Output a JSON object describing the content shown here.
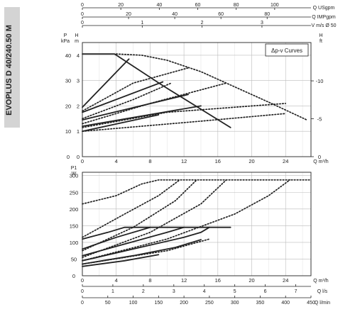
{
  "model_label": "EVOPLUS D 40/240.50 M",
  "chart_data": [
    {
      "type": "line",
      "name": "head",
      "legend": "Δp-v Curves",
      "legend_position": "top-right",
      "ylabel_left": "P kPa",
      "ylabel_left2": "H m",
      "ylabel_right": "H ft",
      "grid": true,
      "x_axis": {
        "label": "Q m³/h",
        "ticks": [
          0,
          4,
          8,
          12,
          16,
          20,
          24
        ],
        "range": [
          0,
          27
        ]
      },
      "y_left_ticks": [
        0,
        10,
        20,
        30,
        40
      ],
      "y_left_m_ticks": [
        0,
        1,
        2,
        3,
        4
      ],
      "y_left_range": [
        0,
        45
      ],
      "y_right_ticks": [
        0,
        5,
        10
      ],
      "top_axes": [
        {
          "label": "Q USgpm",
          "ticks": [
            0,
            20,
            40,
            60,
            80,
            100
          ]
        },
        {
          "label": "Q IMPgpm",
          "ticks": [
            0,
            20,
            40,
            60,
            80
          ]
        },
        {
          "label": "V m/s Ø 50",
          "ticks": [
            0,
            1,
            2,
            3
          ]
        }
      ],
      "series": [
        {
          "style": "solid",
          "points": [
            [
              0,
              40.5
            ],
            [
              3.8,
              40.5
            ],
            [
              9.5,
              28
            ],
            [
              17.5,
              11.5
            ]
          ]
        },
        {
          "style": "solid",
          "points": [
            [
              0,
              19.5
            ],
            [
              5.5,
              38.5
            ]
          ]
        },
        {
          "style": "solid",
          "points": [
            [
              0,
              17.5
            ],
            [
              9.5,
              29.5
            ]
          ]
        },
        {
          "style": "solid",
          "points": [
            [
              0,
              14.5
            ],
            [
              12.5,
              24.5
            ]
          ]
        },
        {
          "style": "solid",
          "points": [
            [
              0,
              12
            ],
            [
              14,
              20
            ]
          ]
        },
        {
          "style": "solid",
          "points": [
            [
              0,
              10
            ],
            [
              9,
              16.5
            ]
          ]
        },
        {
          "style": "dotted",
          "points": [
            [
              4,
              40.5
            ],
            [
              7,
              40
            ],
            [
              10,
              38
            ],
            [
              14,
              33.5
            ],
            [
              18,
              27.5
            ],
            [
              22,
              21.5
            ],
            [
              26.5,
              14.5
            ]
          ]
        },
        {
          "style": "dotted",
          "points": [
            [
              0,
              18
            ],
            [
              6,
              29
            ],
            [
              12.5,
              35
            ]
          ]
        },
        {
          "style": "dotted",
          "points": [
            [
              0,
              15
            ],
            [
              6,
              22.5
            ],
            [
              10.5,
              29
            ]
          ]
        },
        {
          "style": "dotted",
          "points": [
            [
              0,
              13
            ],
            [
              8,
              21
            ],
            [
              17,
              29
            ]
          ]
        },
        {
          "style": "dotted",
          "points": [
            [
              0,
              11.5
            ],
            [
              10,
              17.5
            ],
            [
              24,
              21
            ]
          ]
        },
        {
          "style": "dotted",
          "points": [
            [
              0,
              10
            ],
            [
              14,
              14
            ],
            [
              24,
              17
            ]
          ]
        }
      ]
    },
    {
      "type": "line",
      "name": "power",
      "ylabel": "P1 W",
      "grid": true,
      "x_axis": {
        "label": "Q m³/h",
        "ticks": [
          0,
          4,
          8,
          12,
          16,
          20,
          24
        ],
        "range": [
          0,
          27
        ]
      },
      "y_ticks": [
        0,
        50,
        100,
        150,
        200,
        250,
        300
      ],
      "y_range": [
        0,
        310
      ],
      "bottom_axes": [
        {
          "label": "Q l/s",
          "ticks": [
            0,
            1,
            2,
            3,
            4,
            5,
            6,
            7
          ]
        },
        {
          "label": "Q l/min",
          "ticks": [
            0,
            50,
            100,
            150,
            200,
            250,
            300,
            350,
            400,
            450
          ]
        }
      ],
      "series": [
        {
          "style": "solid",
          "points": [
            [
              0,
              110
            ],
            [
              3,
              130
            ],
            [
              5,
              145
            ],
            [
              17.5,
              145
            ]
          ]
        },
        {
          "style": "solid",
          "points": [
            [
              0,
              80
            ],
            [
              4,
              115
            ],
            [
              8,
              145
            ]
          ]
        },
        {
          "style": "solid",
          "points": [
            [
              0,
              60
            ],
            [
              5,
              95
            ],
            [
              10,
              130
            ],
            [
              12,
              145
            ]
          ]
        },
        {
          "style": "solid",
          "points": [
            [
              0,
              45
            ],
            [
              6,
              80
            ],
            [
              12,
              115
            ],
            [
              14,
              130
            ],
            [
              15,
              145
            ]
          ]
        },
        {
          "style": "solid",
          "points": [
            [
              0,
              35
            ],
            [
              6,
              60
            ],
            [
              11,
              85
            ],
            [
              14,
              108
            ]
          ]
        },
        {
          "style": "solid",
          "points": [
            [
              0,
              28
            ],
            [
              5,
              45
            ],
            [
              9,
              63
            ]
          ]
        },
        {
          "style": "dotted",
          "points": [
            [
              0,
              215
            ],
            [
              4,
              240
            ],
            [
              7,
              275
            ],
            [
              9,
              287
            ],
            [
              27,
              287
            ]
          ]
        },
        {
          "style": "dotted",
          "points": [
            [
              0,
              115
            ],
            [
              5,
              185
            ],
            [
              9,
              240
            ],
            [
              11.5,
              287
            ]
          ]
        },
        {
          "style": "dotted",
          "points": [
            [
              0,
              75
            ],
            [
              6,
              145
            ],
            [
              11,
              225
            ],
            [
              13.5,
              287
            ]
          ]
        },
        {
          "style": "dotted",
          "points": [
            [
              0,
              55
            ],
            [
              8,
              130
            ],
            [
              14,
              215
            ],
            [
              17,
              287
            ]
          ]
        },
        {
          "style": "dotted",
          "points": [
            [
              0,
              45
            ],
            [
              10,
              110
            ],
            [
              18,
              185
            ],
            [
              22,
              240
            ],
            [
              24.5,
              287
            ]
          ]
        },
        {
          "style": "dotted",
          "points": [
            [
              0,
              35
            ],
            [
              10,
              75
            ],
            [
              15,
              110
            ]
          ]
        }
      ]
    }
  ]
}
